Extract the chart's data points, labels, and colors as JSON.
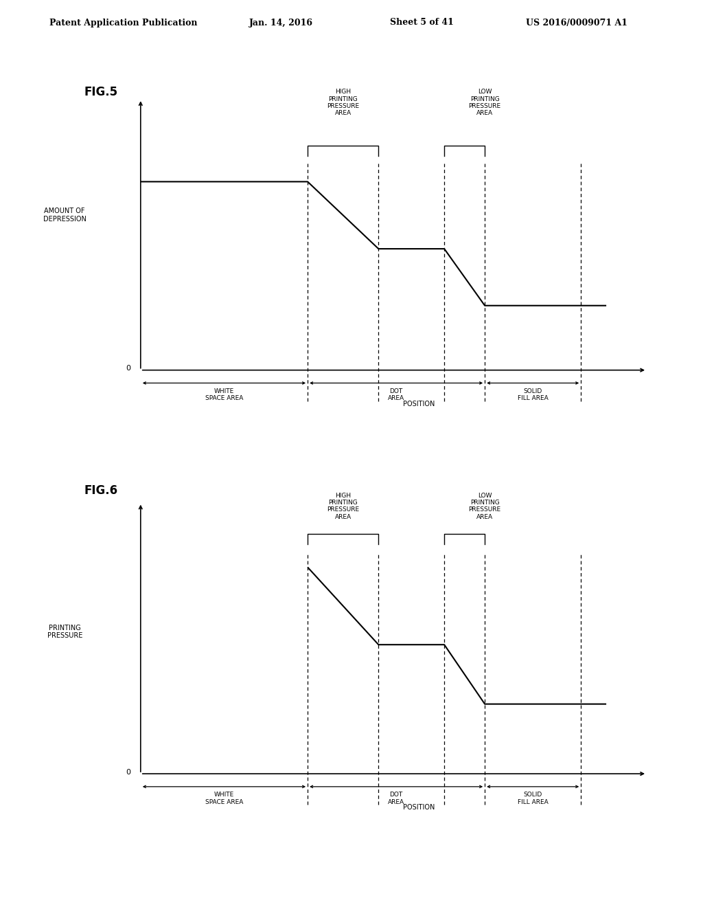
{
  "bg_color": "#ffffff",
  "header_text": "Patent Application Publication",
  "header_date": "Jan. 14, 2016",
  "header_sheet": "Sheet 5 of 41",
  "header_patent": "US 2016/0009071 A1",
  "fig5_label": "FIG.5",
  "fig6_label": "FIG.6",
  "fig5_ylabel": "AMOUNT OF\nDEPRESSION",
  "fig5_xlabel": "POSITION",
  "fig6_ylabel": "PRINTING\nPRESSURE",
  "fig6_xlabel": "POSITION",
  "area_labels": [
    "WHITE\nSPACE AREA",
    "DOT\nAREA",
    "SOLID\nFILL AREA"
  ],
  "high_label": "HIGH\nPRINTING\nPRESSURE\nAREA",
  "low_label": "LOW\nPRINTING\nPRESSURE\nAREA",
  "font_size_header": 9,
  "font_size_fig": 12,
  "font_size_axis": 7,
  "font_size_area": 6.5,
  "font_size_zero": 8
}
